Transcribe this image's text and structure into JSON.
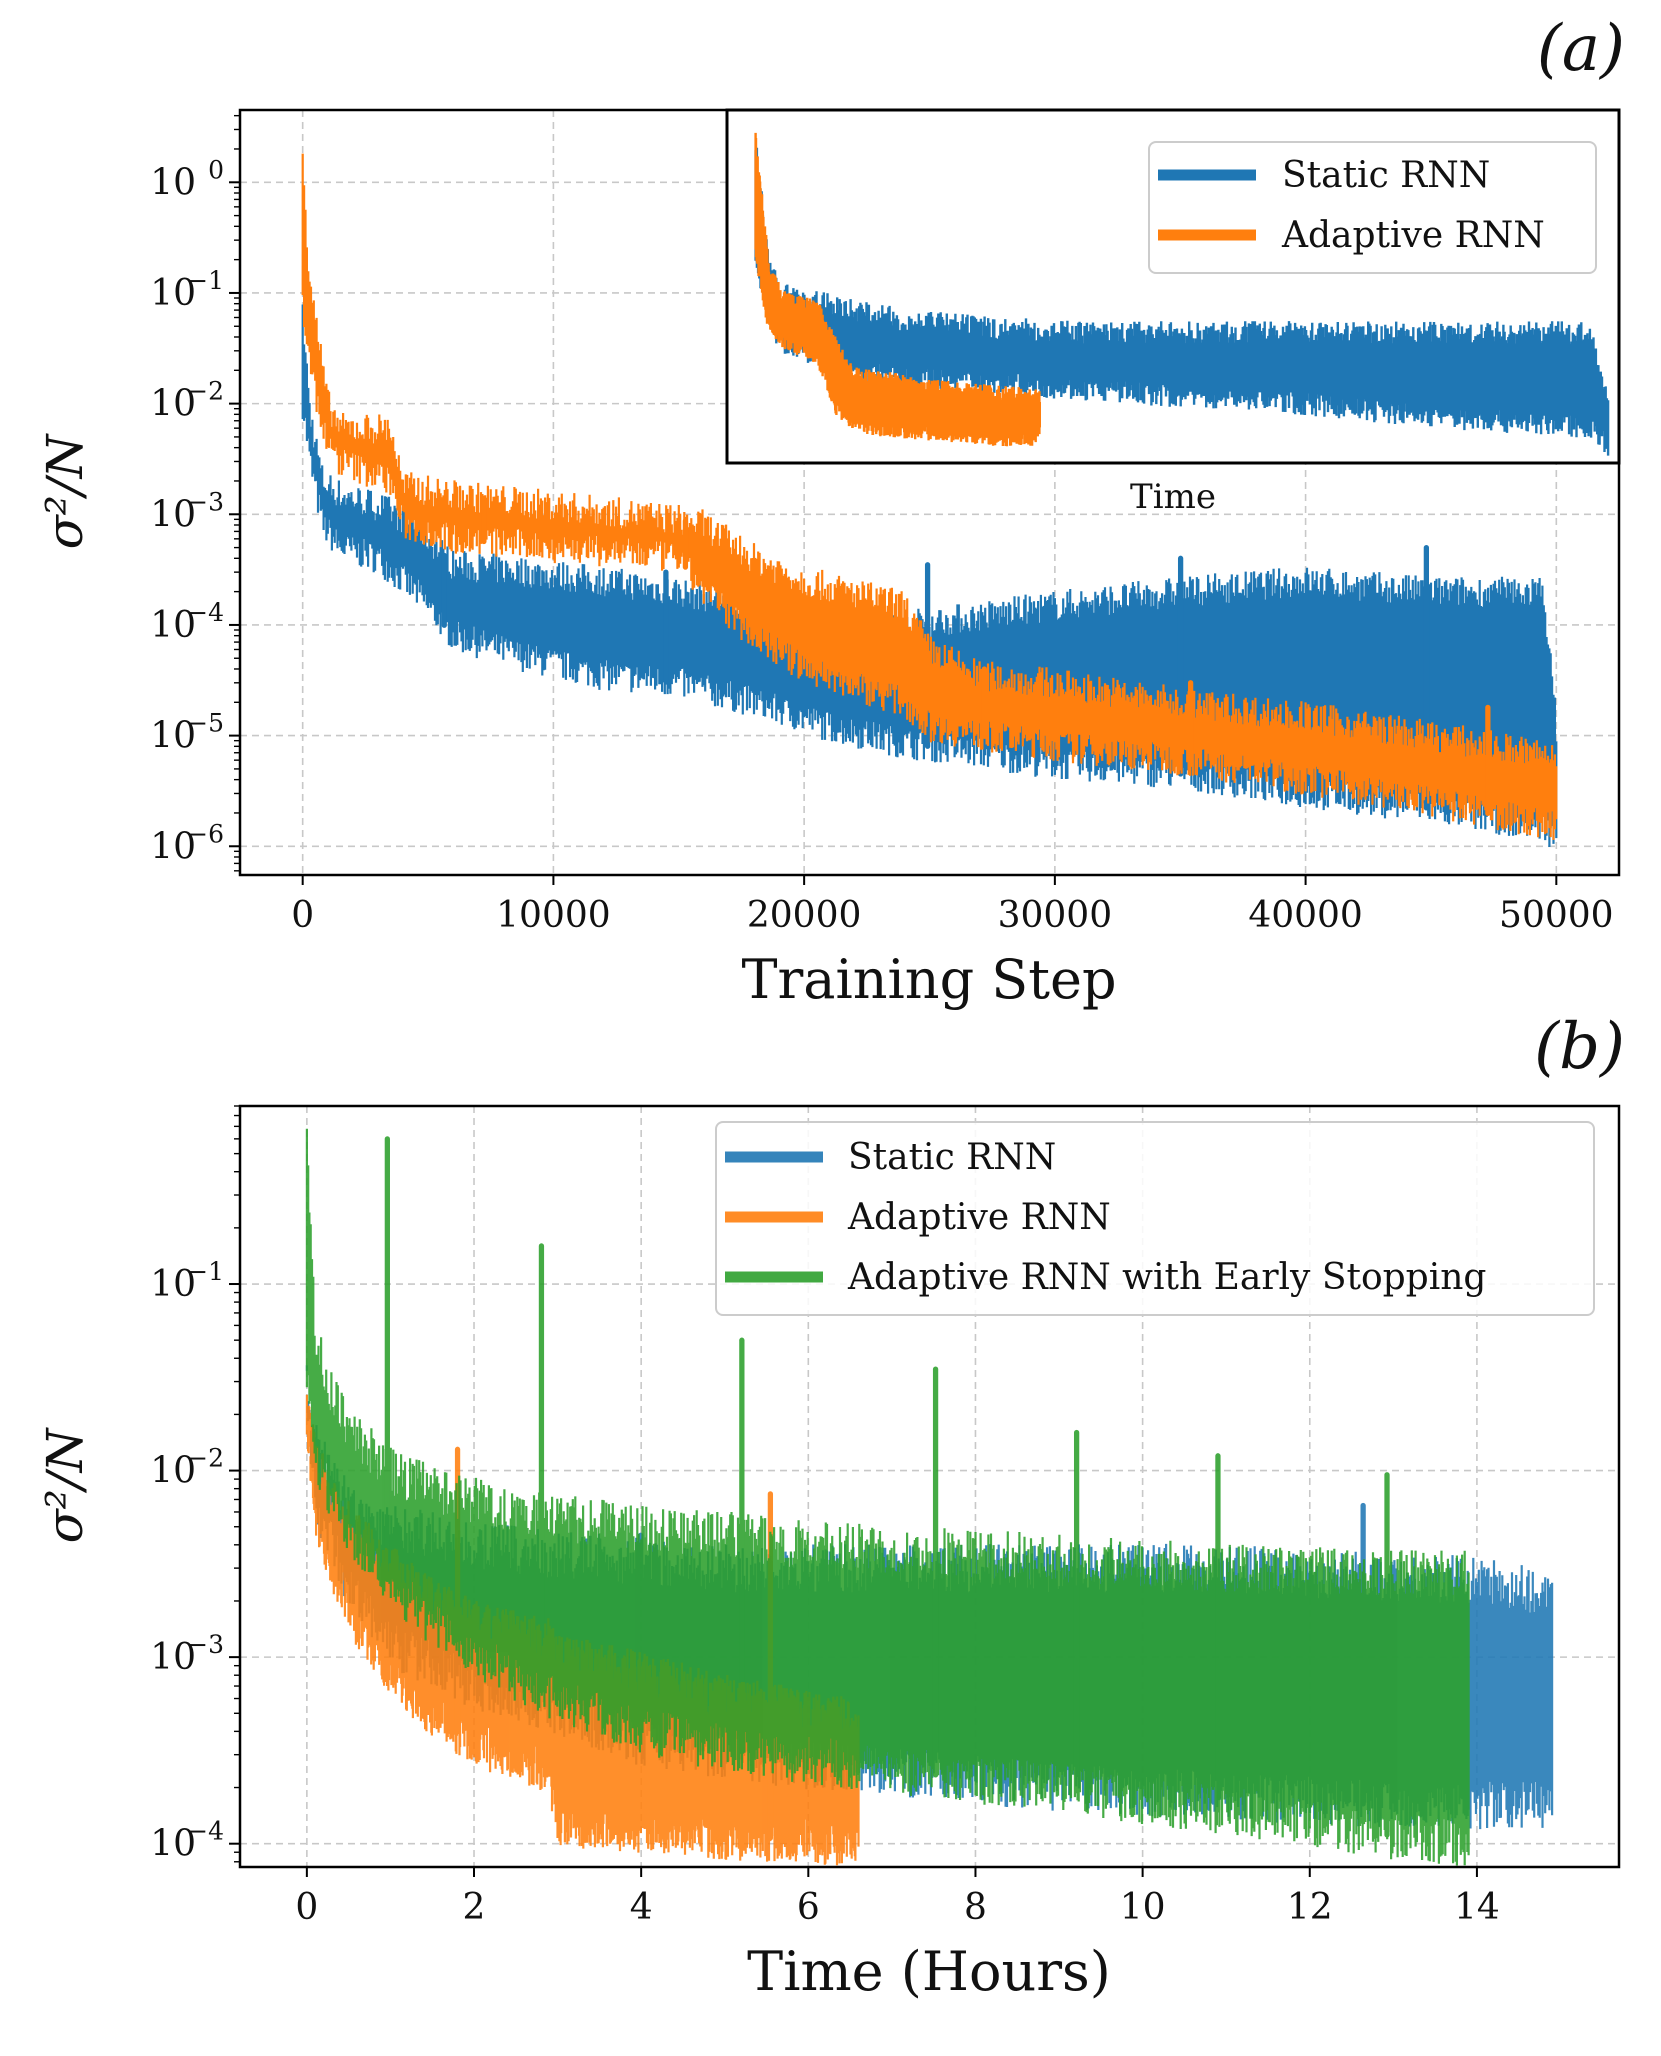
{
  "figure": {
    "panel_a": {
      "label": "(a)"
    },
    "panel_b": {
      "label": "(b)"
    }
  },
  "colors": {
    "blue": "#1f77b4",
    "orange": "#ff7f0e",
    "green": "#2ca02c"
  },
  "chart_data": [
    {
      "id": "a",
      "type": "line",
      "title": "",
      "panel_label": "(a)",
      "xlabel": "Training Step",
      "ylabel": "σ²/N",
      "yscale": "log",
      "xlim": [
        -2500,
        52500
      ],
      "ylim": [
        5.5e-07,
        4.5
      ],
      "xticks": [
        0,
        10000,
        20000,
        30000,
        40000,
        50000
      ],
      "xtick_labels": [
        "0",
        "10000",
        "20000",
        "30000",
        "40000",
        "50000"
      ],
      "ytick_exponents": [
        0,
        -1,
        -2,
        -3,
        -4,
        -5,
        -6
      ],
      "grid": true,
      "series": [
        {
          "name": "Static RNN",
          "color": "#1f77b4",
          "x": [
            0,
            300,
            800,
            1500,
            3000,
            4500,
            6000,
            9000,
            12000,
            15000,
            18000,
            21000,
            24000,
            27000,
            30000,
            35000,
            40000,
            45000,
            49500,
            50000
          ],
          "lower": [
            0.01,
            0.003,
            0.0008,
            0.0005,
            0.0004,
            0.0002,
            8e-05,
            5e-05,
            3.5e-05,
            3e-05,
            2e-05,
            1.2e-05,
            8.5e-06,
            7e-06,
            5.5e-06,
            4.5e-06,
            3e-06,
            2.2e-06,
            1.5e-06,
            1.2e-06
          ],
          "upper": [
            0.06,
            0.008,
            0.002,
            0.0015,
            0.0012,
            0.0008,
            0.00035,
            0.0003,
            0.00025,
            0.0002,
            0.00015,
            0.00012,
            0.0001,
            0.00012,
            0.00015,
            0.0002,
            0.00025,
            0.0002,
            0.0002,
            1.2e-05
          ],
          "spikes": [
            0.00025,
            0.0003,
            0.00035,
            0.0004,
            0.0005
          ]
        },
        {
          "name": "Adaptive RNN",
          "color": "#ff7f0e",
          "x": [
            0,
            200,
            600,
            1000,
            1500,
            3500,
            4000,
            6000,
            10000,
            15000,
            16000,
            18000,
            20000,
            24000,
            25000,
            27000,
            30000,
            35000,
            40000,
            45000,
            50000
          ],
          "lower": [
            0.08,
            0.03,
            0.01,
            0.004,
            0.003,
            0.002,
            0.0008,
            0.0006,
            0.0005,
            0.0004,
            0.0002,
            8e-05,
            4e-05,
            2e-05,
            1.2e-05,
            1e-05,
            8e-06,
            6e-06,
            4e-06,
            2.5e-06,
            1.5e-06
          ],
          "upper": [
            2.5,
            0.2,
            0.04,
            0.01,
            0.006,
            0.006,
            0.0018,
            0.0015,
            0.0012,
            0.0009,
            0.0008,
            0.0004,
            0.00025,
            0.00015,
            6e-05,
            3.5e-05,
            3e-05,
            2e-05,
            1.5e-05,
            1e-05,
            6.5e-06
          ],
          "spikes": [
            0.0003,
            0.0002,
            4e-05,
            3e-05,
            1.8e-05
          ]
        }
      ],
      "legend": {
        "position": "top-right",
        "entries": [
          "Static RNN",
          "Adaptive RNN"
        ]
      },
      "inset": {
        "xlabel": "Time",
        "xlim": [
          0,
          1
        ],
        "ylim": [
          0.0028,
          7
        ],
        "series": [
          {
            "name": "Static RNN",
            "color": "#1f77b4",
            "x": [
              0.03,
              0.045,
              0.06,
              0.1,
              0.15,
              0.2,
              0.3,
              0.4,
              0.5,
              0.6,
              0.7,
              0.8,
              0.9,
              0.97,
              0.99
            ],
            "lower": [
              0.3,
              0.06,
              0.04,
              0.03,
              0.02,
              0.018,
              0.016,
              0.014,
              0.012,
              0.011,
              0.009,
              0.0075,
              0.0065,
              0.006,
              0.004
            ],
            "upper": [
              3.5,
              0.2,
              0.12,
              0.1,
              0.08,
              0.065,
              0.055,
              0.05,
              0.05,
              0.05,
              0.05,
              0.05,
              0.05,
              0.05,
              0.01
            ]
          },
          {
            "name": "Adaptive RNN",
            "color": "#ff7f0e",
            "x": [
              0.03,
              0.045,
              0.06,
              0.1,
              0.12,
              0.14,
              0.18,
              0.25,
              0.3,
              0.35
            ],
            "lower": [
              0.3,
              0.06,
              0.045,
              0.03,
              0.01,
              0.007,
              0.006,
              0.0055,
              0.005,
              0.005
            ],
            "upper": [
              3.5,
              0.2,
              0.1,
              0.08,
              0.035,
              0.018,
              0.016,
              0.013,
              0.012,
              0.011
            ]
          }
        ]
      }
    },
    {
      "id": "b",
      "type": "line",
      "title": "",
      "panel_label": "(b)",
      "xlabel": "Time (Hours)",
      "ylabel": "σ²/N",
      "yscale": "log",
      "xlim": [
        -0.8,
        15.7
      ],
      "ylim": [
        7.5e-05,
        0.9
      ],
      "xticks": [
        0,
        2,
        4,
        6,
        8,
        10,
        12,
        14
      ],
      "xtick_labels": [
        "0",
        "2",
        "4",
        "6",
        "8",
        "10",
        "12",
        "14"
      ],
      "ytick_exponents": [
        -1,
        -2,
        -3,
        -4
      ],
      "grid": true,
      "series": [
        {
          "name": "Static RNN",
          "color": "#1f77b4",
          "x": [
            0,
            0.1,
            0.3,
            0.6,
            1,
            1.5,
            2,
            3,
            4,
            5,
            6,
            7,
            8,
            9,
            10,
            11,
            12,
            13,
            14,
            14.9
          ],
          "lower": [
            0.03,
            0.007,
            0.004,
            0.002,
            0.0012,
            0.0009,
            0.0007,
            0.0005,
            0.00035,
            0.0003,
            0.00026,
            0.00024,
            0.00022,
            0.0002,
            0.00019,
            0.00018,
            0.00017,
            0.00016,
            0.00016,
            0.00016
          ],
          "upper": [
            0.03,
            0.015,
            0.009,
            0.006,
            0.005,
            0.0045,
            0.004,
            0.0035,
            0.0033,
            0.003,
            0.003,
            0.003,
            0.003,
            0.003,
            0.003,
            0.003,
            0.0028,
            0.0027,
            0.0026,
            0.0022
          ],
          "spikes": [
            0.0045,
            0.0065
          ]
        },
        {
          "name": "Adaptive RNN",
          "color": "#ff7f0e",
          "x": [
            0,
            0.1,
            0.3,
            0.6,
            1,
            1.5,
            2,
            2.9,
            3.0,
            4,
            5,
            6,
            6.6
          ],
          "lower": [
            0.02,
            0.006,
            0.003,
            0.0015,
            0.0008,
            0.0005,
            0.00035,
            0.00025,
            0.00013,
            0.00012,
            0.00011,
            0.000105,
            0.0001
          ],
          "upper": [
            0.02,
            0.012,
            0.007,
            0.0045,
            0.003,
            0.002,
            0.0015,
            0.0012,
            0.001,
            0.0008,
            0.0006,
            0.0005,
            0.00045
          ],
          "spikes": [
            0.013,
            0.0075
          ]
        },
        {
          "name": "Adaptive RNN with Early Stopping",
          "color": "#2ca02c",
          "x": [
            0,
            0.1,
            0.3,
            0.6,
            1,
            1.5,
            2,
            3,
            4,
            5,
            6,
            7,
            8,
            9,
            10,
            11,
            12,
            13,
            13.9
          ],
          "lower": [
            0.03,
            0.012,
            0.007,
            0.004,
            0.0025,
            0.0015,
            0.001,
            0.0006,
            0.0004,
            0.00032,
            0.00028,
            0.00025,
            0.00022,
            0.0002,
            0.00017,
            0.00015,
            0.00013,
            0.00011,
            0.0001
          ],
          "upper": [
            0.6,
            0.05,
            0.025,
            0.015,
            0.01,
            0.008,
            0.007,
            0.0055,
            0.005,
            0.0045,
            0.004,
            0.0038,
            0.0036,
            0.0034,
            0.0032,
            0.003,
            0.0029,
            0.0028,
            0.0028
          ],
          "spikes": [
            0.6,
            0.16,
            0.05,
            0.035,
            0.016,
            0.012,
            0.0095
          ]
        }
      ],
      "legend": {
        "position": "top-right",
        "entries": [
          "Static RNN",
          "Adaptive RNN",
          "Adaptive RNN with Early Stopping"
        ]
      }
    }
  ]
}
